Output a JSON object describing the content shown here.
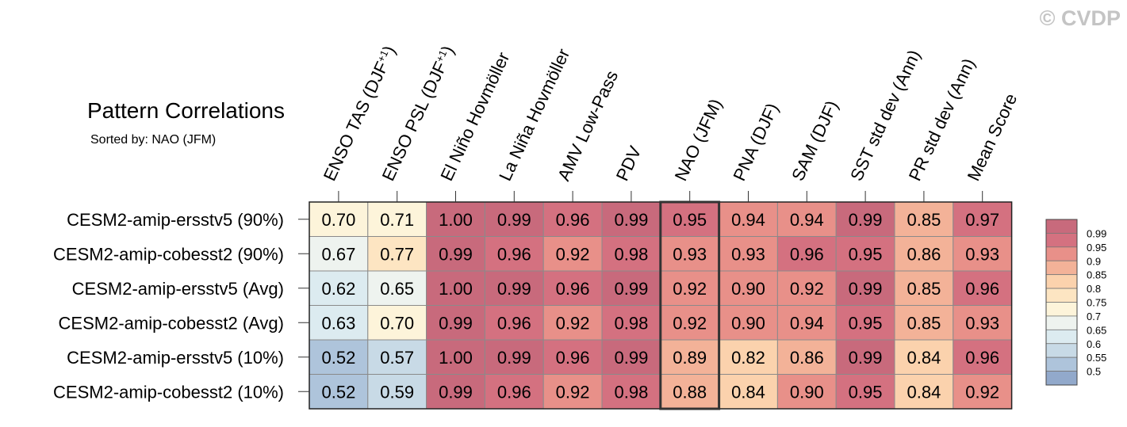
{
  "watermark": "© CVDP",
  "chart_data": {
    "type": "heatmap",
    "title": "Pattern Correlations",
    "subtitle": "Sorted by: NAO (JFM)",
    "columns": [
      {
        "pre": "ENSO TAS (DJF",
        "sup": "+1",
        "post": ")"
      },
      {
        "pre": "ENSO PSL (DJF",
        "sup": "+1",
        "post": ")"
      },
      {
        "pre": "El Niño Hovmöller"
      },
      {
        "pre": "La Niña Hovmöller"
      },
      {
        "pre": "AMV Low-Pass"
      },
      {
        "pre": "PDV"
      },
      {
        "pre": "NAO (JFM)"
      },
      {
        "pre": "PNA (DJF)"
      },
      {
        "pre": "SAM (DJF)"
      },
      {
        "pre": "SST std dev (Ann)"
      },
      {
        "pre": "PR std dev (Ann)"
      },
      {
        "pre": "Mean Score"
      }
    ],
    "rows": [
      "CESM2-amip-ersstv5 (90%)",
      "CESM2-amip-cobesst2 (90%)",
      "CESM2-amip-ersstv5 (Avg)",
      "CESM2-amip-cobesst2 (Avg)",
      "CESM2-amip-ersstv5 (10%)",
      "CESM2-amip-cobesst2 (10%)"
    ],
    "values": [
      [
        0.7,
        0.71,
        1.0,
        0.99,
        0.96,
        0.99,
        0.95,
        0.94,
        0.94,
        0.99,
        0.85,
        0.97
      ],
      [
        0.67,
        0.77,
        0.99,
        0.96,
        0.92,
        0.98,
        0.93,
        0.93,
        0.96,
        0.95,
        0.86,
        0.93
      ],
      [
        0.62,
        0.65,
        1.0,
        0.99,
        0.96,
        0.99,
        0.92,
        0.9,
        0.92,
        0.99,
        0.85,
        0.96
      ],
      [
        0.63,
        0.7,
        0.99,
        0.96,
        0.92,
        0.98,
        0.92,
        0.9,
        0.94,
        0.95,
        0.85,
        0.93
      ],
      [
        0.52,
        0.57,
        1.0,
        0.99,
        0.96,
        0.99,
        0.89,
        0.82,
        0.86,
        0.99,
        0.84,
        0.96
      ],
      [
        0.52,
        0.59,
        0.99,
        0.96,
        0.92,
        0.98,
        0.88,
        0.84,
        0.9,
        0.95,
        0.84,
        0.92
      ]
    ],
    "highlight_column": "NAO (JFM)",
    "colorbar": {
      "labels": [
        "0.99",
        "0.95",
        "0.9",
        "0.85",
        "0.8",
        "0.75",
        "0.7",
        "0.65",
        "0.6",
        "0.55",
        "0.5"
      ],
      "thresholds": [
        0.5,
        0.55,
        0.6,
        0.65,
        0.7,
        0.75,
        0.8,
        0.85,
        0.9,
        0.95,
        0.99
      ],
      "colors": [
        "#92a9cb",
        "#aec4db",
        "#c8dae6",
        "#dcebf0",
        "#eef3ef",
        "#fdf4da",
        "#fde5c2",
        "#fbd2ad",
        "#f3b298",
        "#e89089",
        "#d47180",
        "#c86a7c"
      ]
    }
  }
}
